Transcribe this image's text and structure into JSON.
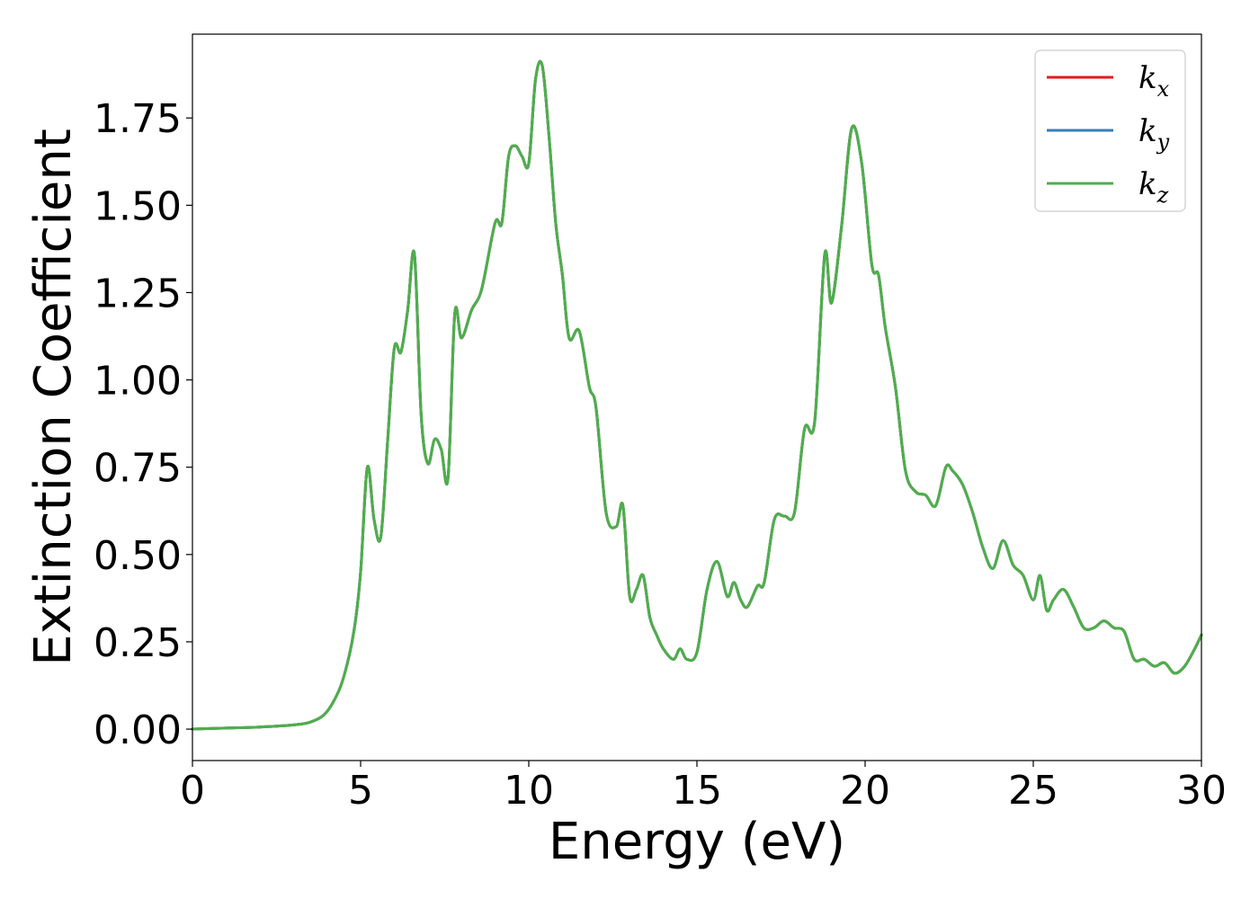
{
  "chart_data": {
    "type": "line",
    "title": "",
    "xlabel": "Energy (eV)",
    "ylabel": "Extinction Coefficient",
    "xlim": [
      0,
      30
    ],
    "ylim": [
      -0.09,
      1.99
    ],
    "xticks": [
      0,
      5,
      10,
      15,
      20,
      25,
      30
    ],
    "xtick_labels": [
      "0",
      "5",
      "10",
      "15",
      "20",
      "25",
      "30"
    ],
    "yticks": [
      0,
      0.25,
      0.5,
      0.75,
      1.0,
      1.25,
      1.5,
      1.75
    ],
    "ytick_labels": [
      "0.00",
      "0.25",
      "0.50",
      "0.75",
      "1.00",
      "1.25",
      "1.50",
      "1.75"
    ],
    "grid": false,
    "legend_position": "top-right",
    "x": [
      0,
      1,
      2,
      3,
      3.5,
      3.9,
      4.2,
      4.5,
      4.8,
      5.0,
      5.2,
      5.4,
      5.6,
      5.8,
      6.0,
      6.2,
      6.4,
      6.6,
      6.8,
      7.0,
      7.2,
      7.4,
      7.6,
      7.8,
      8.0,
      8.3,
      8.6,
      9.0,
      9.2,
      9.4,
      9.6,
      9.8,
      10.0,
      10.2,
      10.4,
      10.6,
      10.8,
      11.0,
      11.2,
      11.5,
      11.8,
      12.0,
      12.3,
      12.6,
      12.8,
      13.0,
      13.2,
      13.4,
      13.6,
      13.8,
      14.0,
      14.3,
      14.5,
      14.7,
      15.0,
      15.3,
      15.6,
      15.9,
      16.1,
      16.3,
      16.5,
      16.8,
      17.0,
      17.3,
      17.6,
      17.9,
      18.2,
      18.5,
      18.8,
      19.0,
      19.3,
      19.6,
      19.9,
      20.2,
      20.4,
      20.6,
      20.9,
      21.2,
      21.5,
      21.8,
      22.1,
      22.4,
      22.6,
      22.9,
      23.2,
      23.5,
      23.8,
      24.1,
      24.4,
      24.7,
      25.0,
      25.2,
      25.4,
      25.6,
      25.9,
      26.2,
      26.5,
      26.8,
      27.1,
      27.4,
      27.7,
      28.0,
      28.3,
      28.6,
      28.9,
      29.2,
      29.5,
      29.8,
      30.0
    ],
    "series": [
      {
        "name": "k_x",
        "color": "#e41a1c",
        "values": [
          0.0,
          0.003,
          0.006,
          0.012,
          0.02,
          0.04,
          0.08,
          0.15,
          0.28,
          0.45,
          0.75,
          0.6,
          0.55,
          0.82,
          1.09,
          1.08,
          1.2,
          1.36,
          0.9,
          0.76,
          0.83,
          0.8,
          0.72,
          1.19,
          1.12,
          1.2,
          1.26,
          1.45,
          1.45,
          1.64,
          1.67,
          1.64,
          1.62,
          1.86,
          1.9,
          1.7,
          1.45,
          1.3,
          1.12,
          1.14,
          0.98,
          0.92,
          0.62,
          0.58,
          0.64,
          0.38,
          0.4,
          0.44,
          0.32,
          0.27,
          0.23,
          0.2,
          0.23,
          0.2,
          0.22,
          0.4,
          0.48,
          0.38,
          0.42,
          0.37,
          0.35,
          0.41,
          0.42,
          0.6,
          0.61,
          0.62,
          0.86,
          0.88,
          1.36,
          1.22,
          1.44,
          1.72,
          1.62,
          1.33,
          1.3,
          1.15,
          0.98,
          0.74,
          0.68,
          0.67,
          0.64,
          0.75,
          0.74,
          0.7,
          0.62,
          0.52,
          0.46,
          0.54,
          0.47,
          0.44,
          0.37,
          0.44,
          0.34,
          0.37,
          0.4,
          0.35,
          0.29,
          0.29,
          0.31,
          0.29,
          0.28,
          0.2,
          0.2,
          0.18,
          0.19,
          0.16,
          0.18,
          0.23,
          0.27
        ]
      },
      {
        "name": "k_y",
        "color": "#377eb8",
        "values": [
          0.0,
          0.003,
          0.006,
          0.012,
          0.02,
          0.04,
          0.08,
          0.15,
          0.28,
          0.45,
          0.75,
          0.6,
          0.55,
          0.82,
          1.09,
          1.08,
          1.2,
          1.36,
          0.9,
          0.76,
          0.83,
          0.8,
          0.72,
          1.19,
          1.12,
          1.2,
          1.26,
          1.45,
          1.45,
          1.64,
          1.67,
          1.64,
          1.62,
          1.86,
          1.9,
          1.7,
          1.45,
          1.3,
          1.12,
          1.14,
          0.98,
          0.92,
          0.62,
          0.58,
          0.64,
          0.38,
          0.4,
          0.44,
          0.32,
          0.27,
          0.23,
          0.2,
          0.23,
          0.2,
          0.22,
          0.4,
          0.48,
          0.38,
          0.42,
          0.37,
          0.35,
          0.41,
          0.42,
          0.6,
          0.61,
          0.62,
          0.86,
          0.88,
          1.36,
          1.22,
          1.44,
          1.72,
          1.62,
          1.33,
          1.3,
          1.15,
          0.98,
          0.74,
          0.68,
          0.67,
          0.64,
          0.75,
          0.74,
          0.7,
          0.62,
          0.52,
          0.46,
          0.54,
          0.47,
          0.44,
          0.37,
          0.44,
          0.34,
          0.37,
          0.4,
          0.35,
          0.29,
          0.29,
          0.31,
          0.29,
          0.28,
          0.2,
          0.2,
          0.18,
          0.19,
          0.16,
          0.18,
          0.23,
          0.27
        ]
      },
      {
        "name": "k_z",
        "color": "#4daf4a",
        "values": [
          0.0,
          0.003,
          0.006,
          0.012,
          0.02,
          0.04,
          0.08,
          0.15,
          0.28,
          0.45,
          0.75,
          0.6,
          0.55,
          0.82,
          1.09,
          1.08,
          1.2,
          1.36,
          0.9,
          0.76,
          0.83,
          0.8,
          0.72,
          1.19,
          1.12,
          1.2,
          1.26,
          1.45,
          1.45,
          1.64,
          1.67,
          1.64,
          1.62,
          1.86,
          1.9,
          1.7,
          1.45,
          1.3,
          1.12,
          1.14,
          0.98,
          0.92,
          0.62,
          0.58,
          0.64,
          0.38,
          0.4,
          0.44,
          0.32,
          0.27,
          0.23,
          0.2,
          0.23,
          0.2,
          0.22,
          0.4,
          0.48,
          0.38,
          0.42,
          0.37,
          0.35,
          0.41,
          0.42,
          0.6,
          0.61,
          0.62,
          0.86,
          0.88,
          1.36,
          1.22,
          1.44,
          1.72,
          1.62,
          1.33,
          1.3,
          1.15,
          0.98,
          0.74,
          0.68,
          0.67,
          0.64,
          0.75,
          0.74,
          0.7,
          0.62,
          0.52,
          0.46,
          0.54,
          0.47,
          0.44,
          0.37,
          0.44,
          0.34,
          0.37,
          0.4,
          0.35,
          0.29,
          0.29,
          0.31,
          0.29,
          0.28,
          0.2,
          0.2,
          0.18,
          0.19,
          0.16,
          0.18,
          0.23,
          0.27
        ]
      }
    ],
    "legend": [
      {
        "base": "k",
        "sub": "x",
        "color": "#e41a1c"
      },
      {
        "base": "k",
        "sub": "y",
        "color": "#377eb8"
      },
      {
        "base": "k",
        "sub": "z",
        "color": "#4daf4a"
      }
    ]
  }
}
